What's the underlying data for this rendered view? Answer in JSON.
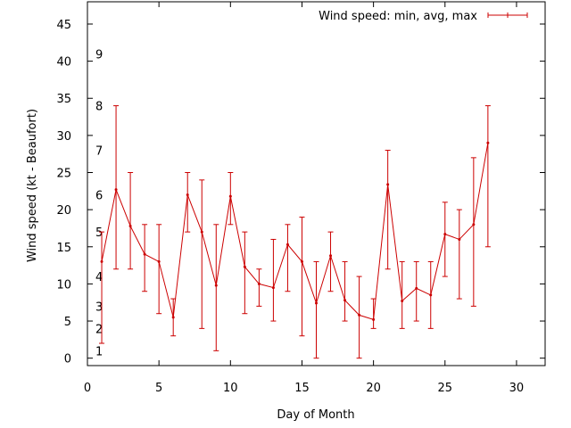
{
  "chart_data": {
    "type": "line",
    "xlabel": "Day of Month",
    "ylabel": "Wind speed (kt - Beaufort)",
    "xlim": [
      0,
      32
    ],
    "ylim": [
      -1,
      48
    ],
    "x_ticks": [
      0,
      5,
      10,
      15,
      20,
      25,
      30
    ],
    "y_ticks": [
      0,
      5,
      10,
      15,
      20,
      25,
      30,
      35,
      40,
      45
    ],
    "beaufort_labels": [
      {
        "label": "1",
        "kt": 1
      },
      {
        "label": "2",
        "kt": 4
      },
      {
        "label": "3",
        "kt": 7
      },
      {
        "label": "4",
        "kt": 11
      },
      {
        "label": "5",
        "kt": 17
      },
      {
        "label": "6",
        "kt": 22
      },
      {
        "label": "7",
        "kt": 28
      },
      {
        "label": "8",
        "kt": 34
      },
      {
        "label": "9",
        "kt": 41
      }
    ],
    "legend_position": "top-right",
    "grid": false,
    "series": [
      {
        "name": "Wind speed: min, avg, max",
        "color": "#cc0000",
        "x": [
          1,
          2,
          3,
          4,
          5,
          6,
          7,
          8,
          9,
          10,
          11,
          12,
          13,
          14,
          15,
          16,
          17,
          18,
          19,
          20,
          21,
          22,
          23,
          24,
          25,
          26,
          27,
          28
        ],
        "avg": [
          13,
          22.7,
          17.8,
          14,
          13,
          5.5,
          22,
          17,
          9.8,
          21.8,
          12.3,
          10,
          9.5,
          15.3,
          13,
          7.4,
          13.8,
          7.8,
          5.8,
          5.2,
          23.4,
          7.7,
          9.4,
          8.5,
          16.7,
          16,
          18,
          29
        ],
        "min": [
          2,
          12,
          12,
          9,
          6,
          3,
          17,
          4,
          1,
          18,
          6,
          7,
          5,
          9,
          3,
          0,
          9,
          5,
          0,
          4,
          12,
          4,
          5,
          4,
          11,
          8,
          7,
          15
        ],
        "max": [
          17,
          34,
          25,
          18,
          18,
          8,
          25,
          24,
          18,
          25,
          17,
          12,
          16,
          18,
          19,
          13,
          17,
          13,
          11,
          8,
          28,
          13,
          13,
          13,
          21,
          20,
          27,
          34
        ]
      }
    ]
  }
}
